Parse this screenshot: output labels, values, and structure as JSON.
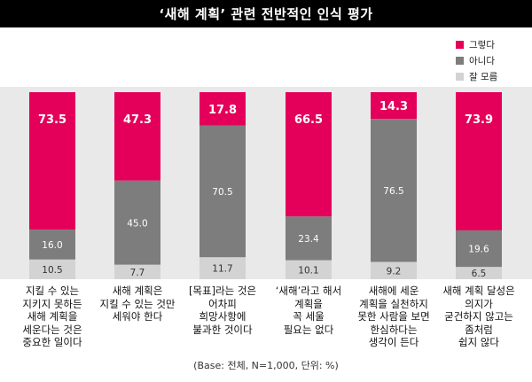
{
  "title": "‘새해 계획’ 관련 전반적인 인식 평가",
  "footnote": "(Base: 전체, N=1,000, 단위: %)",
  "colors": {
    "yes": "#e4005a",
    "no": "#7d7d7d",
    "dontknow": "#d3d3d3",
    "band": "#e9e9e9"
  },
  "chart_data": {
    "type": "bar",
    "stacked": true,
    "categories": [
      "지킬 수 있는\n지키지 못하든\n새해 계획을\n세운다는 것은\n중요한 일이다",
      "새해 계획은\n지킬 수 있는 것만\n세워야 한다",
      "[목표]라는 것은\n어차피\n희망사항에\n불과한 것이다",
      "‘새해’라고 해서\n계획을\n꼭 세울\n필요는 없다",
      "새해에 세운\n계획을 실천하지\n못한 사람을 보면\n한심하다는\n생각이 든다",
      "새해 계획 달성은\n의지가\n굳건하지 않고는\n좀처럼\n쉽지 않다"
    ],
    "series": [
      {
        "name": "그렇다",
        "values": [
          73.5,
          47.3,
          17.8,
          66.5,
          14.3,
          73.9
        ],
        "labels": [
          "73.5",
          "47.3",
          "17.8",
          "66.5",
          "14.3",
          "73.9"
        ]
      },
      {
        "name": "아니다",
        "values": [
          16.0,
          45.0,
          70.5,
          23.4,
          76.5,
          19.6
        ],
        "labels": [
          "16.0",
          "45.0",
          "70.5",
          "23.4",
          "76.5",
          "19.6"
        ]
      },
      {
        "name": "잘 모름",
        "values": [
          10.5,
          7.7,
          11.7,
          10.1,
          9.2,
          6.5
        ],
        "labels": [
          "10.5",
          "7.7",
          "11.7",
          "10.1",
          "9.2",
          "6.5"
        ]
      }
    ],
    "ylim": [
      0,
      100
    ]
  }
}
